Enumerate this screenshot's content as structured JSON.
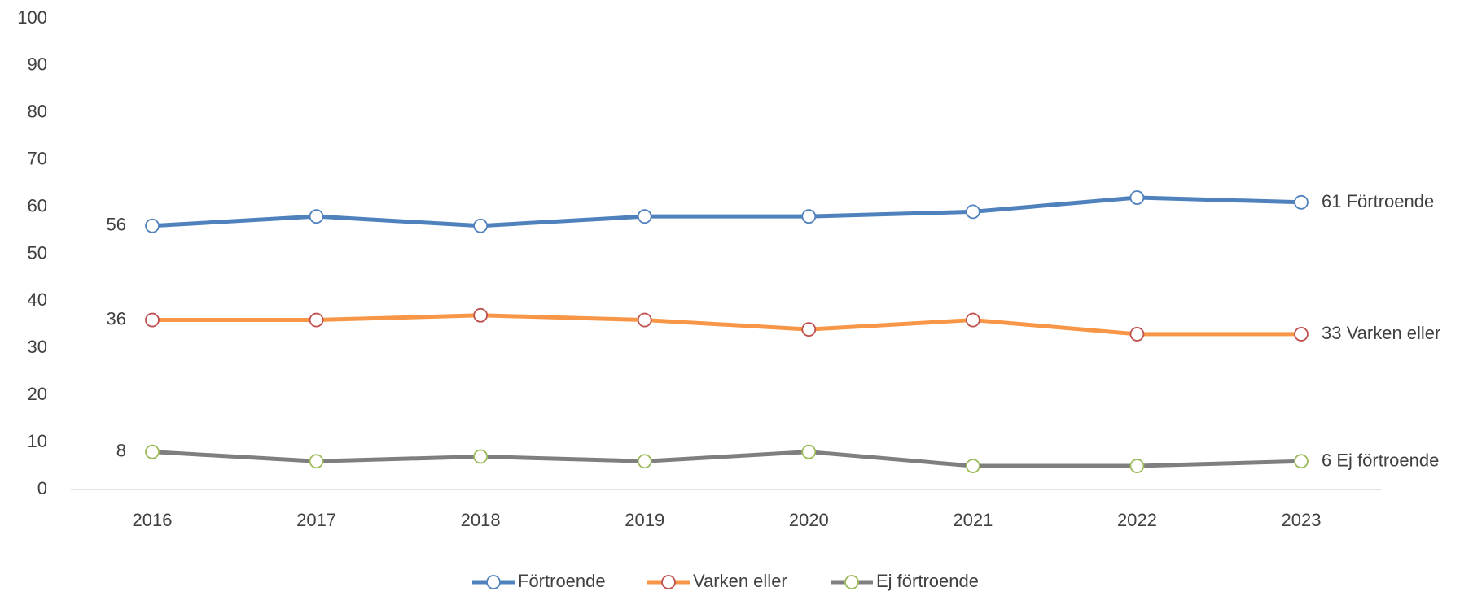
{
  "chart_data": {
    "type": "line",
    "x": [
      2016,
      2017,
      2018,
      2019,
      2020,
      2021,
      2022,
      2023
    ],
    "series": [
      {
        "name": "Förtroende",
        "color": "#4f81bd",
        "marker_color": "#4f81bd",
        "values": [
          56,
          58,
          56,
          58,
          58,
          59,
          62,
          61
        ]
      },
      {
        "name": "Varken eller",
        "color": "#f79646",
        "marker_color": "#c0504d",
        "values": [
          36,
          36,
          37,
          36,
          34,
          36,
          33,
          33
        ]
      },
      {
        "name": "Ej förtroende",
        "color": "#7f7f7f",
        "marker_color": "#9bbb59",
        "values": [
          8,
          6,
          7,
          6,
          8,
          5,
          5,
          6
        ]
      }
    ],
    "ylim": [
      0,
      100
    ],
    "yticks": [
      0,
      10,
      20,
      30,
      40,
      50,
      60,
      70,
      80,
      90,
      100
    ],
    "grid": false,
    "legend": "bottom"
  }
}
